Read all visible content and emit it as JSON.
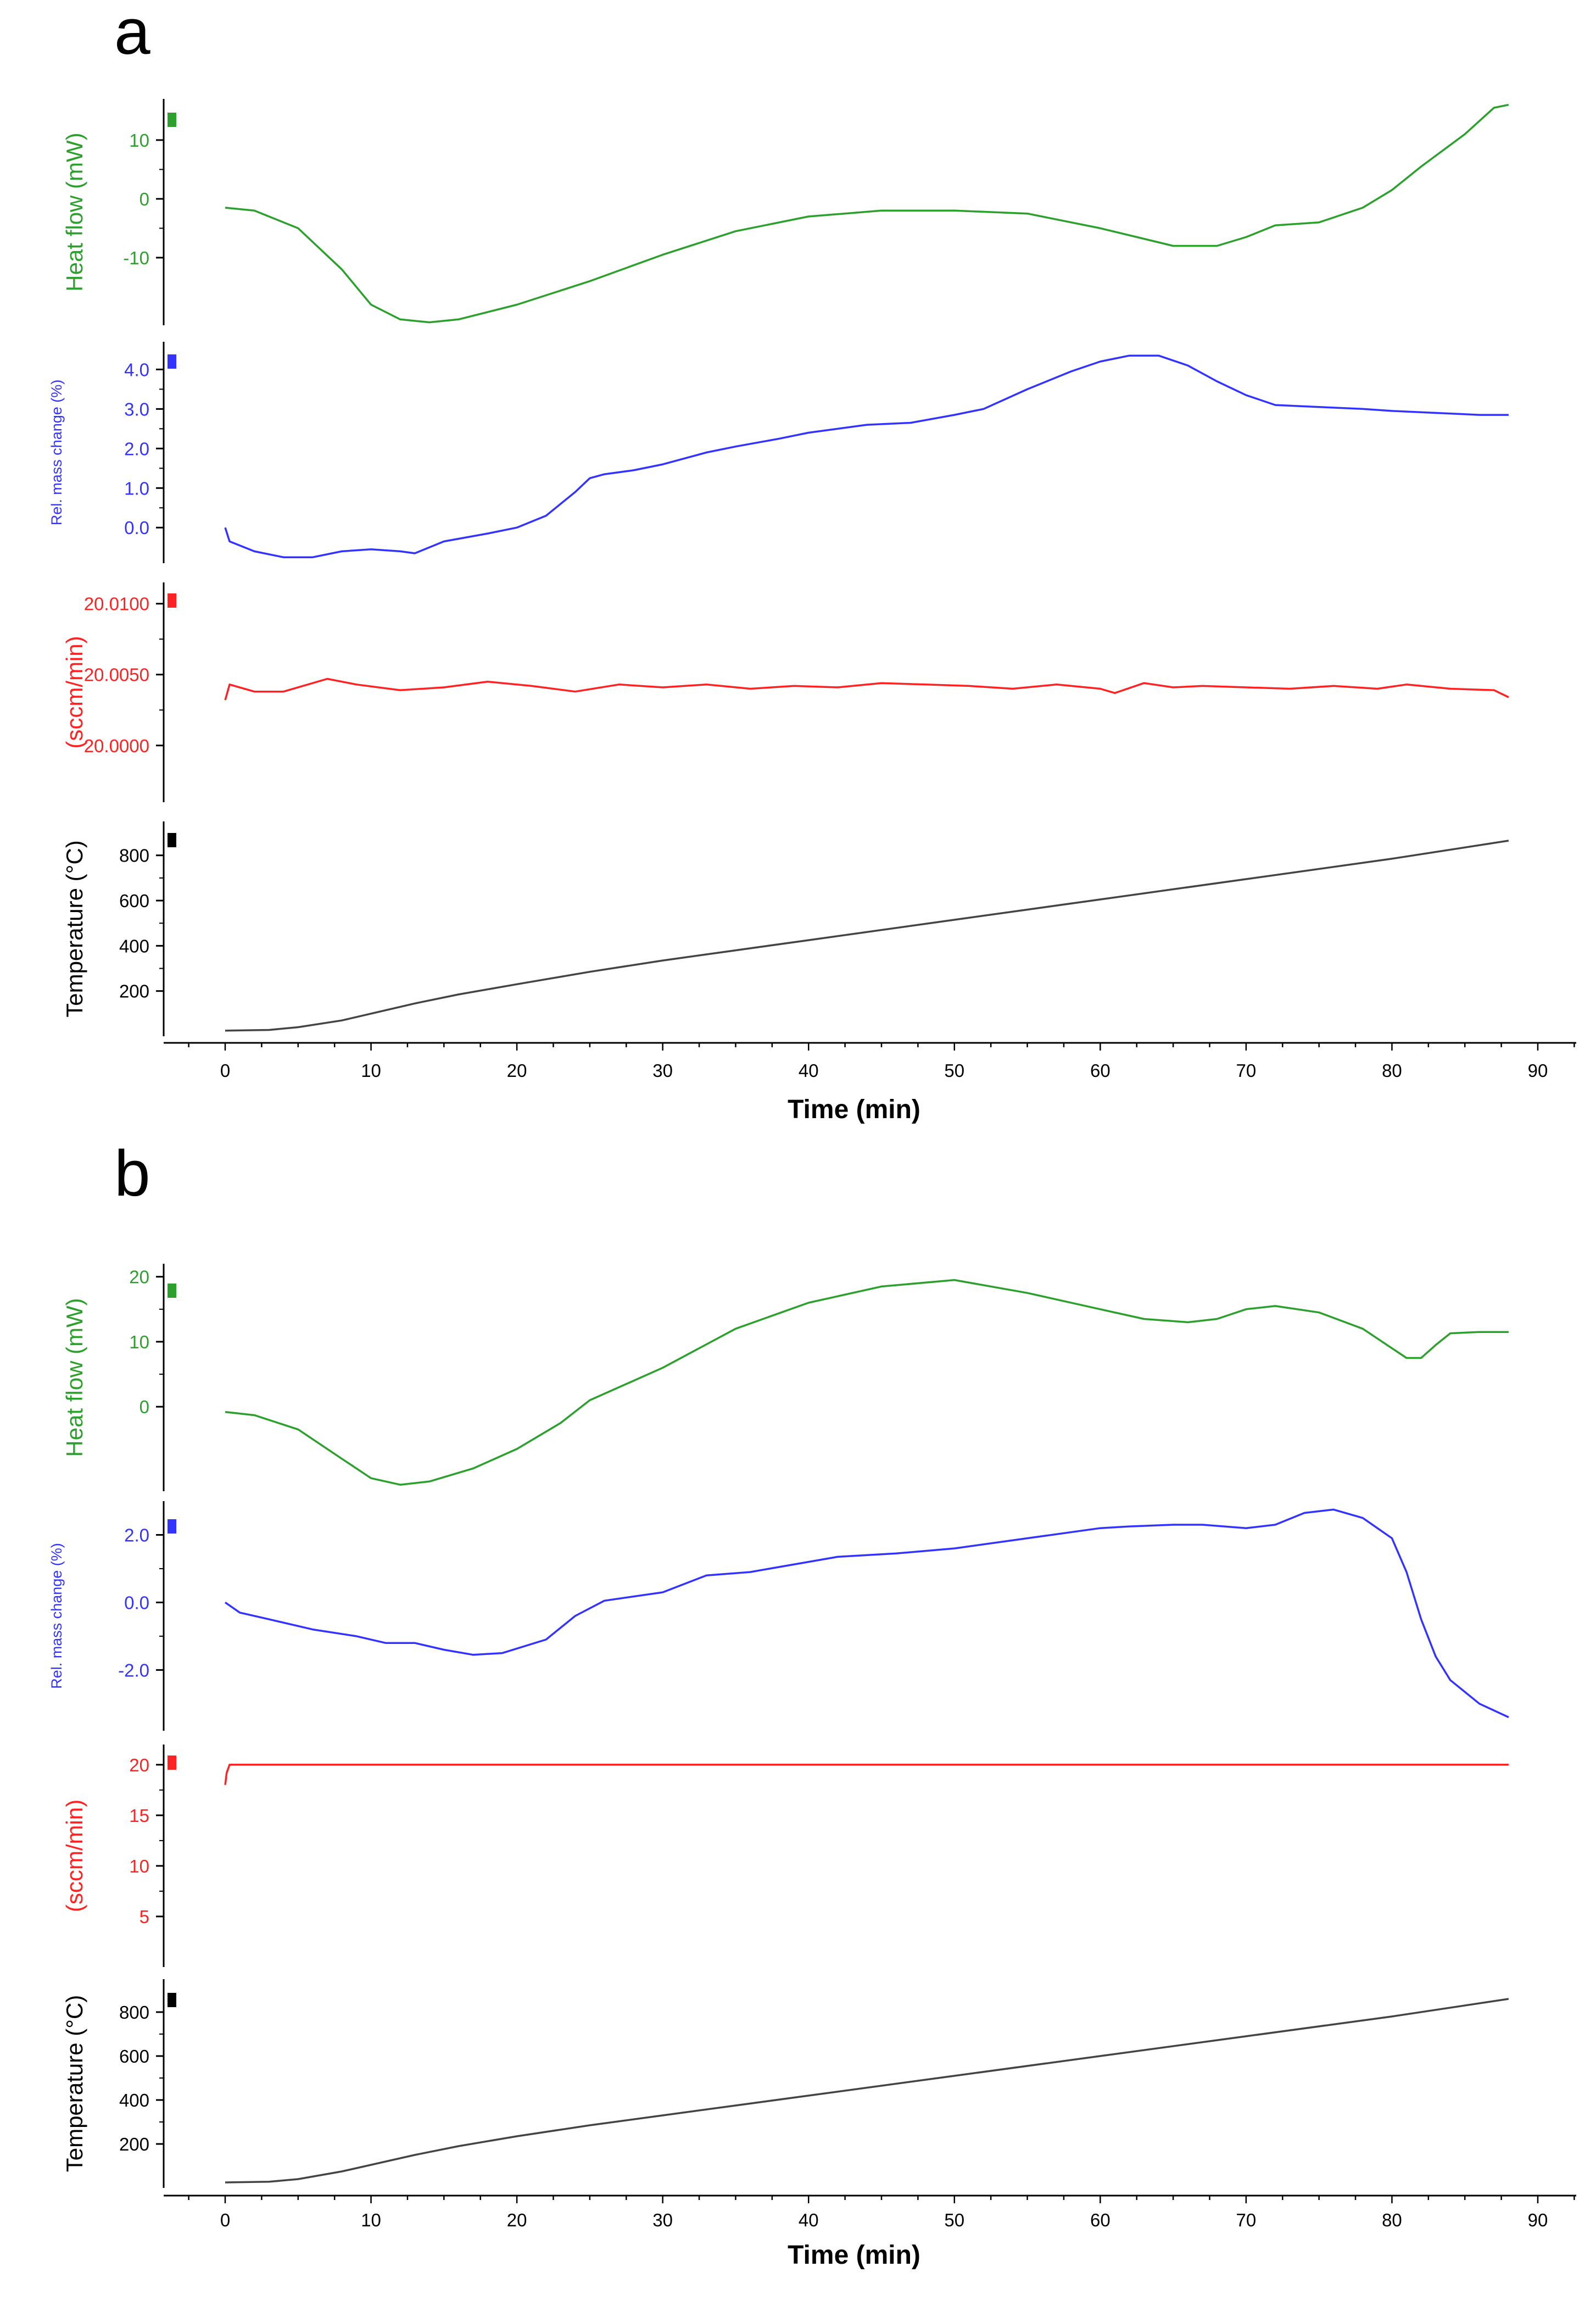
{
  "figure": {
    "panels": [
      "a",
      "b"
    ]
  },
  "colors": {
    "heat_flow": "#2ca02c",
    "mass_change": "#3333ff",
    "gas_flow": "#ff2222",
    "temperature": "#000000",
    "curve_temperature": "#444444"
  },
  "chart_data": [
    {
      "panel": "a",
      "type": "line",
      "xlabel": "Time (min)",
      "xlim": [
        -5,
        93
      ],
      "xticks": [
        0,
        10,
        20,
        30,
        40,
        50,
        60,
        70,
        80,
        90
      ],
      "subplots": [
        {
          "key": "heat",
          "ylabel": "Heat flow (mW)",
          "ylim": [
            -21.5,
            17
          ],
          "yticks": [
            10,
            0,
            -10
          ],
          "ytick_labels": [
            "10",
            "0",
            "-10"
          ],
          "series": [
            {
              "name": "Heat flow",
              "x": [
                0,
                2,
                5,
                8,
                10,
                12,
                14,
                16,
                20,
                25,
                30,
                35,
                40,
                45,
                50,
                55,
                60,
                65,
                68,
                70,
                72,
                75,
                78,
                80,
                82,
                85,
                87,
                88
              ],
              "y": [
                -1.5,
                -2,
                -5,
                -12,
                -18,
                -20.5,
                -21,
                -20.5,
                -18,
                -14,
                -9.5,
                -5.5,
                -3,
                -2,
                -2,
                -2.5,
                -5,
                -8,
                -8,
                -6.5,
                -4.5,
                -4,
                -1.5,
                1.5,
                5.5,
                11,
                15.5,
                16
              ]
            }
          ]
        },
        {
          "key": "mass",
          "ylabel": "Rel. mass change (%)",
          "ylim": [
            -0.9,
            4.7
          ],
          "yticks": [
            4.0,
            3.0,
            2.0,
            1.0,
            0.0
          ],
          "ytick_labels": [
            "4.0",
            "3.0",
            "2.0",
            "1.0",
            "0.0"
          ],
          "series": [
            {
              "name": "Rel. mass change",
              "x": [
                0,
                0.3,
                2,
                4,
                6,
                8,
                10,
                12,
                13,
                15,
                18,
                20,
                22,
                24,
                25,
                26,
                28,
                30,
                33,
                35,
                38,
                40,
                44,
                47,
                50,
                52,
                55,
                58,
                60,
                62,
                64,
                66,
                68,
                70,
                72,
                75,
                78,
                80,
                83,
                86,
                88
              ],
              "y": [
                0.0,
                -0.35,
                -0.6,
                -0.75,
                -0.75,
                -0.6,
                -0.55,
                -0.6,
                -0.65,
                -0.35,
                -0.15,
                0.0,
                0.3,
                0.9,
                1.25,
                1.35,
                1.45,
                1.6,
                1.9,
                2.05,
                2.25,
                2.4,
                2.6,
                2.65,
                2.85,
                3.0,
                3.5,
                3.95,
                4.2,
                4.35,
                4.35,
                4.1,
                3.7,
                3.35,
                3.1,
                3.05,
                3.0,
                2.95,
                2.9,
                2.85,
                2.85
              ]
            }
          ]
        },
        {
          "key": "flow",
          "ylabel": "(sccm/min)",
          "ylim": [
            19.996,
            20.0115
          ],
          "yticks": [
            20.01,
            20.005,
            20.0
          ],
          "ytick_labels": [
            "20.0100",
            "20.0050",
            "20.0000"
          ],
          "series": [
            {
              "name": "Gas flow",
              "x": [
                0,
                0.3,
                2,
                4,
                7,
                9,
                12,
                15,
                18,
                21,
                24,
                27,
                30,
                33,
                36,
                39,
                42,
                45,
                48,
                51,
                54,
                57,
                60,
                61,
                63,
                65,
                67,
                70,
                73,
                76,
                79,
                81,
                84,
                87,
                88
              ],
              "y": [
                20.0032,
                20.0043,
                20.0038,
                20.0038,
                20.0047,
                20.0043,
                20.0039,
                20.0041,
                20.0045,
                20.0042,
                20.0038,
                20.0043,
                20.0041,
                20.0043,
                20.004,
                20.0042,
                20.0041,
                20.0044,
                20.0043,
                20.0042,
                20.004,
                20.0043,
                20.004,
                20.0037,
                20.0044,
                20.0041,
                20.0042,
                20.0041,
                20.004,
                20.0042,
                20.004,
                20.0043,
                20.004,
                20.0039,
                20.0034
              ]
            }
          ]
        },
        {
          "key": "temp",
          "ylabel": "Temperature (°C)",
          "ylim": [
            0,
            950
          ],
          "yticks": [
            800,
            600,
            400,
            200
          ],
          "ytick_labels": [
            "800",
            "600",
            "400",
            "200"
          ],
          "series": [
            {
              "name": "Temperature",
              "x": [
                0,
                3,
                5,
                8,
                10,
                13,
                16,
                20,
                25,
                30,
                35,
                40,
                50,
                60,
                70,
                80,
                88
              ],
              "y": [
                25,
                28,
                40,
                70,
                100,
                145,
                185,
                230,
                285,
                335,
                380,
                425,
                515,
                605,
                695,
                785,
                865
              ]
            }
          ]
        }
      ]
    },
    {
      "panel": "b",
      "type": "line",
      "xlabel": "Time (min)",
      "xlim": [
        -5,
        93
      ],
      "xticks": [
        0,
        10,
        20,
        30,
        40,
        50,
        60,
        70,
        80,
        90
      ],
      "subplots": [
        {
          "key": "heat",
          "ylabel": "Heat flow (mW)",
          "ylim": [
            -13,
            22
          ],
          "yticks": [
            20,
            10,
            0
          ],
          "ytick_labels": [
            "20",
            "10",
            "0"
          ],
          "series": [
            {
              "name": "Heat flow",
              "x": [
                0,
                2,
                5,
                8,
                10,
                12,
                14,
                17,
                20,
                23,
                25,
                30,
                35,
                40,
                45,
                50,
                55,
                60,
                63,
                66,
                68,
                70,
                72,
                75,
                78,
                80,
                81,
                82,
                83,
                84,
                86,
                88
              ],
              "y": [
                -0.8,
                -1.3,
                -3.5,
                -8,
                -11,
                -12,
                -11.5,
                -9.5,
                -6.5,
                -2.5,
                1,
                6,
                12,
                16,
                18.5,
                19.5,
                17.5,
                15,
                13.5,
                13,
                13.5,
                15,
                15.5,
                14.5,
                12,
                9,
                7.5,
                7.5,
                9.5,
                11.3,
                11.5,
                11.5
              ]
            }
          ]
        },
        {
          "key": "mass",
          "ylabel": "Rel. mass change (%)",
          "ylim": [
            -3.8,
            3.0
          ],
          "yticks": [
            2.0,
            0.0,
            -2.0
          ],
          "ytick_labels": [
            "2.0",
            "0.0",
            "-2.0"
          ],
          "series": [
            {
              "name": "Rel. mass change",
              "x": [
                0,
                1,
                3,
                6,
                9,
                11,
                13,
                15,
                17,
                19,
                22,
                24,
                26,
                30,
                33,
                36,
                40,
                42,
                46,
                50,
                55,
                60,
                62,
                65,
                67,
                70,
                72,
                74,
                76,
                78,
                80,
                81,
                82,
                83,
                84,
                86,
                88
              ],
              "y": [
                0.0,
                -0.3,
                -0.5,
                -0.8,
                -1.0,
                -1.2,
                -1.2,
                -1.4,
                -1.55,
                -1.5,
                -1.1,
                -0.4,
                0.05,
                0.3,
                0.8,
                0.9,
                1.2,
                1.35,
                1.45,
                1.6,
                1.9,
                2.2,
                2.25,
                2.3,
                2.3,
                2.2,
                2.3,
                2.65,
                2.75,
                2.5,
                1.9,
                0.9,
                -0.5,
                -1.6,
                -2.3,
                -3.0,
                -3.4
              ]
            }
          ]
        },
        {
          "key": "flow",
          "ylabel": "(sccm/min)",
          "ylim": [
            0,
            22
          ],
          "yticks": [
            20,
            15,
            10,
            5
          ],
          "ytick_labels": [
            "20",
            "15",
            "10",
            "5"
          ],
          "series": [
            {
              "name": "Gas flow",
              "x": [
                0,
                0.1,
                0.3,
                1,
                88
              ],
              "y": [
                18,
                19.2,
                20,
                20,
                20
              ]
            }
          ]
        },
        {
          "key": "temp",
          "ylabel": "Temperature (°C)",
          "ylim": [
            0,
            950
          ],
          "yticks": [
            800,
            600,
            400,
            200
          ],
          "ytick_labels": [
            "800",
            "600",
            "400",
            "200"
          ],
          "series": [
            {
              "name": "Temperature",
              "x": [
                0,
                3,
                5,
                8,
                10,
                13,
                16,
                20,
                25,
                30,
                35,
                40,
                50,
                60,
                70,
                80,
                88
              ],
              "y": [
                25,
                28,
                40,
                75,
                105,
                150,
                190,
                235,
                285,
                330,
                375,
                420,
                510,
                600,
                690,
                780,
                860
              ]
            }
          ]
        }
      ]
    }
  ]
}
